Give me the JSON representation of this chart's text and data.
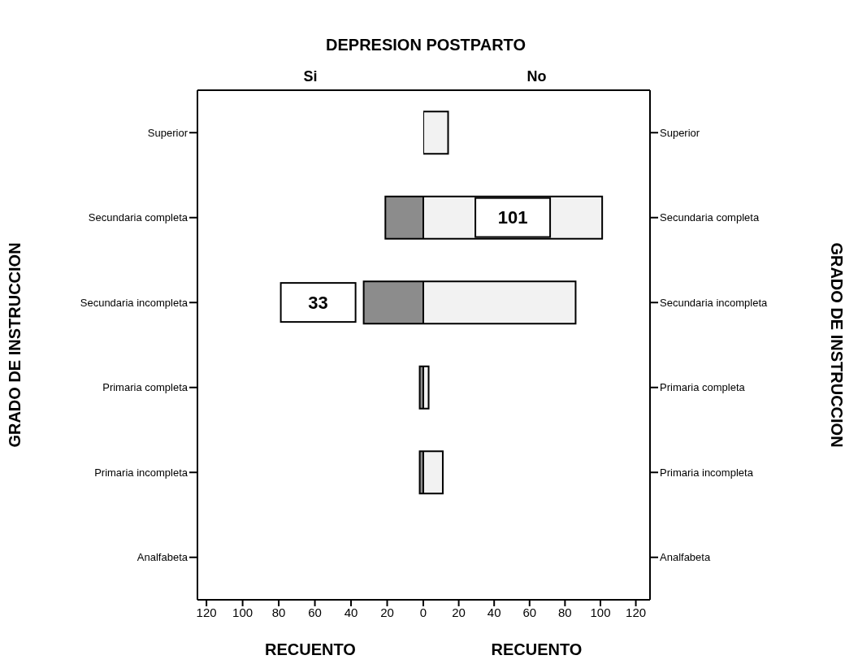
{
  "chart_data": [
    {
      "type": "bar",
      "orientation": "horizontal",
      "title": "DEPRESION POSTPARTO",
      "subtitle": "Si",
      "xlabel": "RECUENTO",
      "ylabel": "GRADO DE INSTRUCCION",
      "categories": [
        "Superior",
        "Secundaria completa",
        "Secundaria incompleta",
        "Primaria completa",
        "Primaria incompleta",
        "Analfabeta"
      ],
      "values": [
        0,
        21,
        33,
        2,
        2,
        0
      ],
      "value_labels": [
        null,
        null,
        "33",
        null,
        null,
        null
      ],
      "color": "#8c8c8c",
      "xlim": [
        125,
        0
      ],
      "xticks": [
        120,
        100,
        80,
        60,
        40,
        20,
        {
          "value": 0,
          "label": null
        }
      ],
      "grid": false,
      "legend": false
    },
    {
      "type": "bar",
      "orientation": "horizontal",
      "subtitle": "No",
      "xlabel": "RECUENTO",
      "ylabel": "GRADO DE INSTRUCCION",
      "categories": [
        "Superior",
        "Secundaria completa",
        "Secundaria incompleta",
        "Primaria completa",
        "Primaria incompleta",
        "Analfabeta"
      ],
      "values": [
        14,
        101,
        86,
        3,
        11,
        0
      ],
      "value_labels": [
        null,
        "101",
        null,
        null,
        null,
        null
      ],
      "color": "#f2f2f2",
      "xlim": [
        0,
        128
      ],
      "xticks": [
        0,
        20,
        40,
        60,
        80,
        100,
        120
      ],
      "grid": false,
      "legend": false
    }
  ]
}
